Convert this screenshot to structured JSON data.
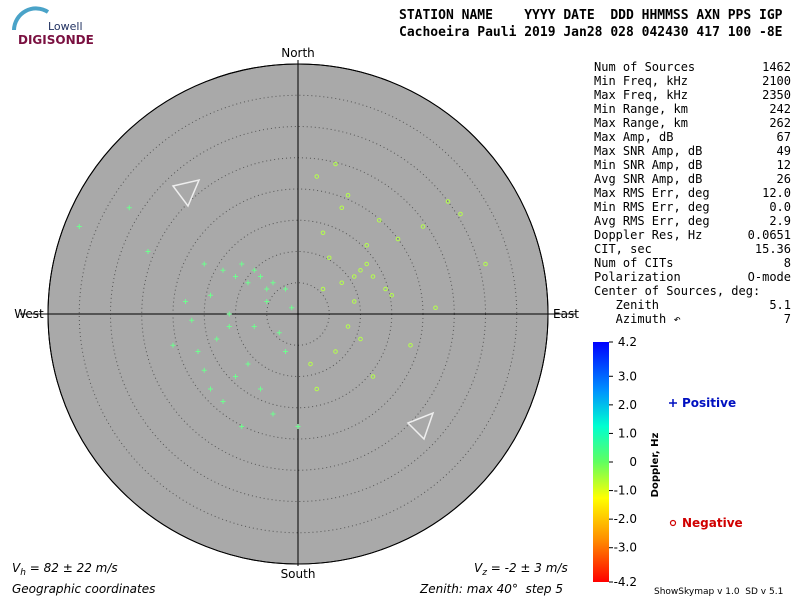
{
  "header": {
    "logo_top": "Lowell",
    "logo_bottom": "DIGISONDE",
    "line1": "STATION NAME    YYYY DATE  DDD HHMMSS AXN PPS IGP",
    "line2": "Cachoeira Pauli 2019 Jan28 028 042430 417 100 -8E"
  },
  "stats": [
    [
      "Num of Sources",
      "1462"
    ],
    [
      "Min Freq, kHz",
      "2100"
    ],
    [
      "Max Freq, kHz",
      "2350"
    ],
    [
      "Min Range, km",
      "242"
    ],
    [
      "Max Range, km",
      "262"
    ],
    [
      "Max Amp, dB",
      "67"
    ],
    [
      "Max SNR Amp, dB",
      "49"
    ],
    [
      "Min SNR Amp, dB",
      "12"
    ],
    [
      "Avg SNR Amp, dB",
      "26"
    ],
    [
      "Max RMS Err, deg",
      "12.0"
    ],
    [
      "Min RMS Err, deg",
      "0.0"
    ],
    [
      "Avg RMS Err, deg",
      "2.9"
    ],
    [
      "Doppler Res, Hz",
      "0.0651"
    ],
    [
      "CIT, sec",
      "15.36"
    ],
    [
      "Num of CITs",
      "8"
    ],
    [
      "Polarization",
      "O-mode"
    ],
    [
      "Center of Sources, deg:",
      ""
    ],
    [
      "   Zenith",
      "5.1"
    ],
    [
      "   Azimuth ↶",
      "7"
    ]
  ],
  "chart_data": {
    "type": "skymap",
    "compass": {
      "north": "North",
      "south": "South",
      "east": "East",
      "west": "West"
    },
    "xlim": [
      -40,
      40
    ],
    "ylim": [
      -40,
      40
    ],
    "rings": [
      5,
      10,
      15,
      20,
      25,
      30,
      35,
      40
    ],
    "series": [
      {
        "name": "Positive",
        "marker": "plus",
        "color": "#6dff8e",
        "legend_color": "#0010c0",
        "x": [
          -27,
          -35,
          -24,
          -15,
          -12,
          -10,
          -8,
          -6,
          -4,
          -2,
          -14,
          -18,
          -9,
          -7,
          -5,
          -11,
          -13,
          -16,
          -3,
          -1,
          -10,
          -6,
          -8,
          -12,
          -15,
          -4,
          -9,
          -20,
          -7,
          -2,
          0,
          -14,
          -11,
          -5,
          -17
        ],
        "y": [
          17,
          14,
          10,
          8,
          7,
          6,
          5,
          6,
          5,
          4,
          3,
          2,
          8,
          7,
          4,
          -2,
          -4,
          -6,
          -3,
          1,
          -10,
          -12,
          -8,
          -14,
          -9,
          -16,
          -18,
          -5,
          -2,
          -6,
          -18,
          -12,
          0,
          2,
          -1
        ]
      },
      {
        "name": "Negative",
        "marker": "circle",
        "color": "#b4ff4c",
        "legend_color": "#d00000",
        "x": [
          3,
          6,
          8,
          10,
          12,
          7,
          9,
          11,
          14,
          5,
          4,
          13,
          16,
          20,
          24,
          26,
          30,
          8,
          10,
          6,
          2,
          12,
          18,
          22,
          15,
          9,
          4,
          11,
          7,
          3
        ],
        "y": [
          22,
          24,
          19,
          7,
          6,
          5,
          6,
          8,
          4,
          9,
          13,
          15,
          12,
          14,
          18,
          16,
          8,
          -2,
          -4,
          -6,
          -8,
          -10,
          -5,
          1,
          3,
          2,
          4,
          11,
          17,
          -12
        ]
      }
    ],
    "colorbar": {
      "label": "Doppler, Hz",
      "clim": [
        -4.2,
        4.2
      ],
      "ticks": [
        4.2,
        {
          "value": 3,
          "label": "3.0"
        },
        {
          "value": 2,
          "label": "2.0"
        },
        {
          "value": 1,
          "label": "1.0"
        },
        0,
        {
          "value": -1,
          "label": "-1.0"
        },
        {
          "value": -2,
          "label": "-2.0"
        },
        {
          "value": -3,
          "label": "-3.0"
        },
        -4.2
      ]
    },
    "vh": {
      "symbol": "V",
      "sub": "h",
      "text": " = 82 ± 22 m/s"
    },
    "vz": {
      "symbol": "V",
      "sub": "z",
      "text": " = -2 ± 3 m/s"
    }
  },
  "footer": {
    "coords": "Geographic coordinates",
    "zenith": "Zenith: max 40°  step 5",
    "version": "ShowSkymap v 1.0  SD v 5.1"
  }
}
